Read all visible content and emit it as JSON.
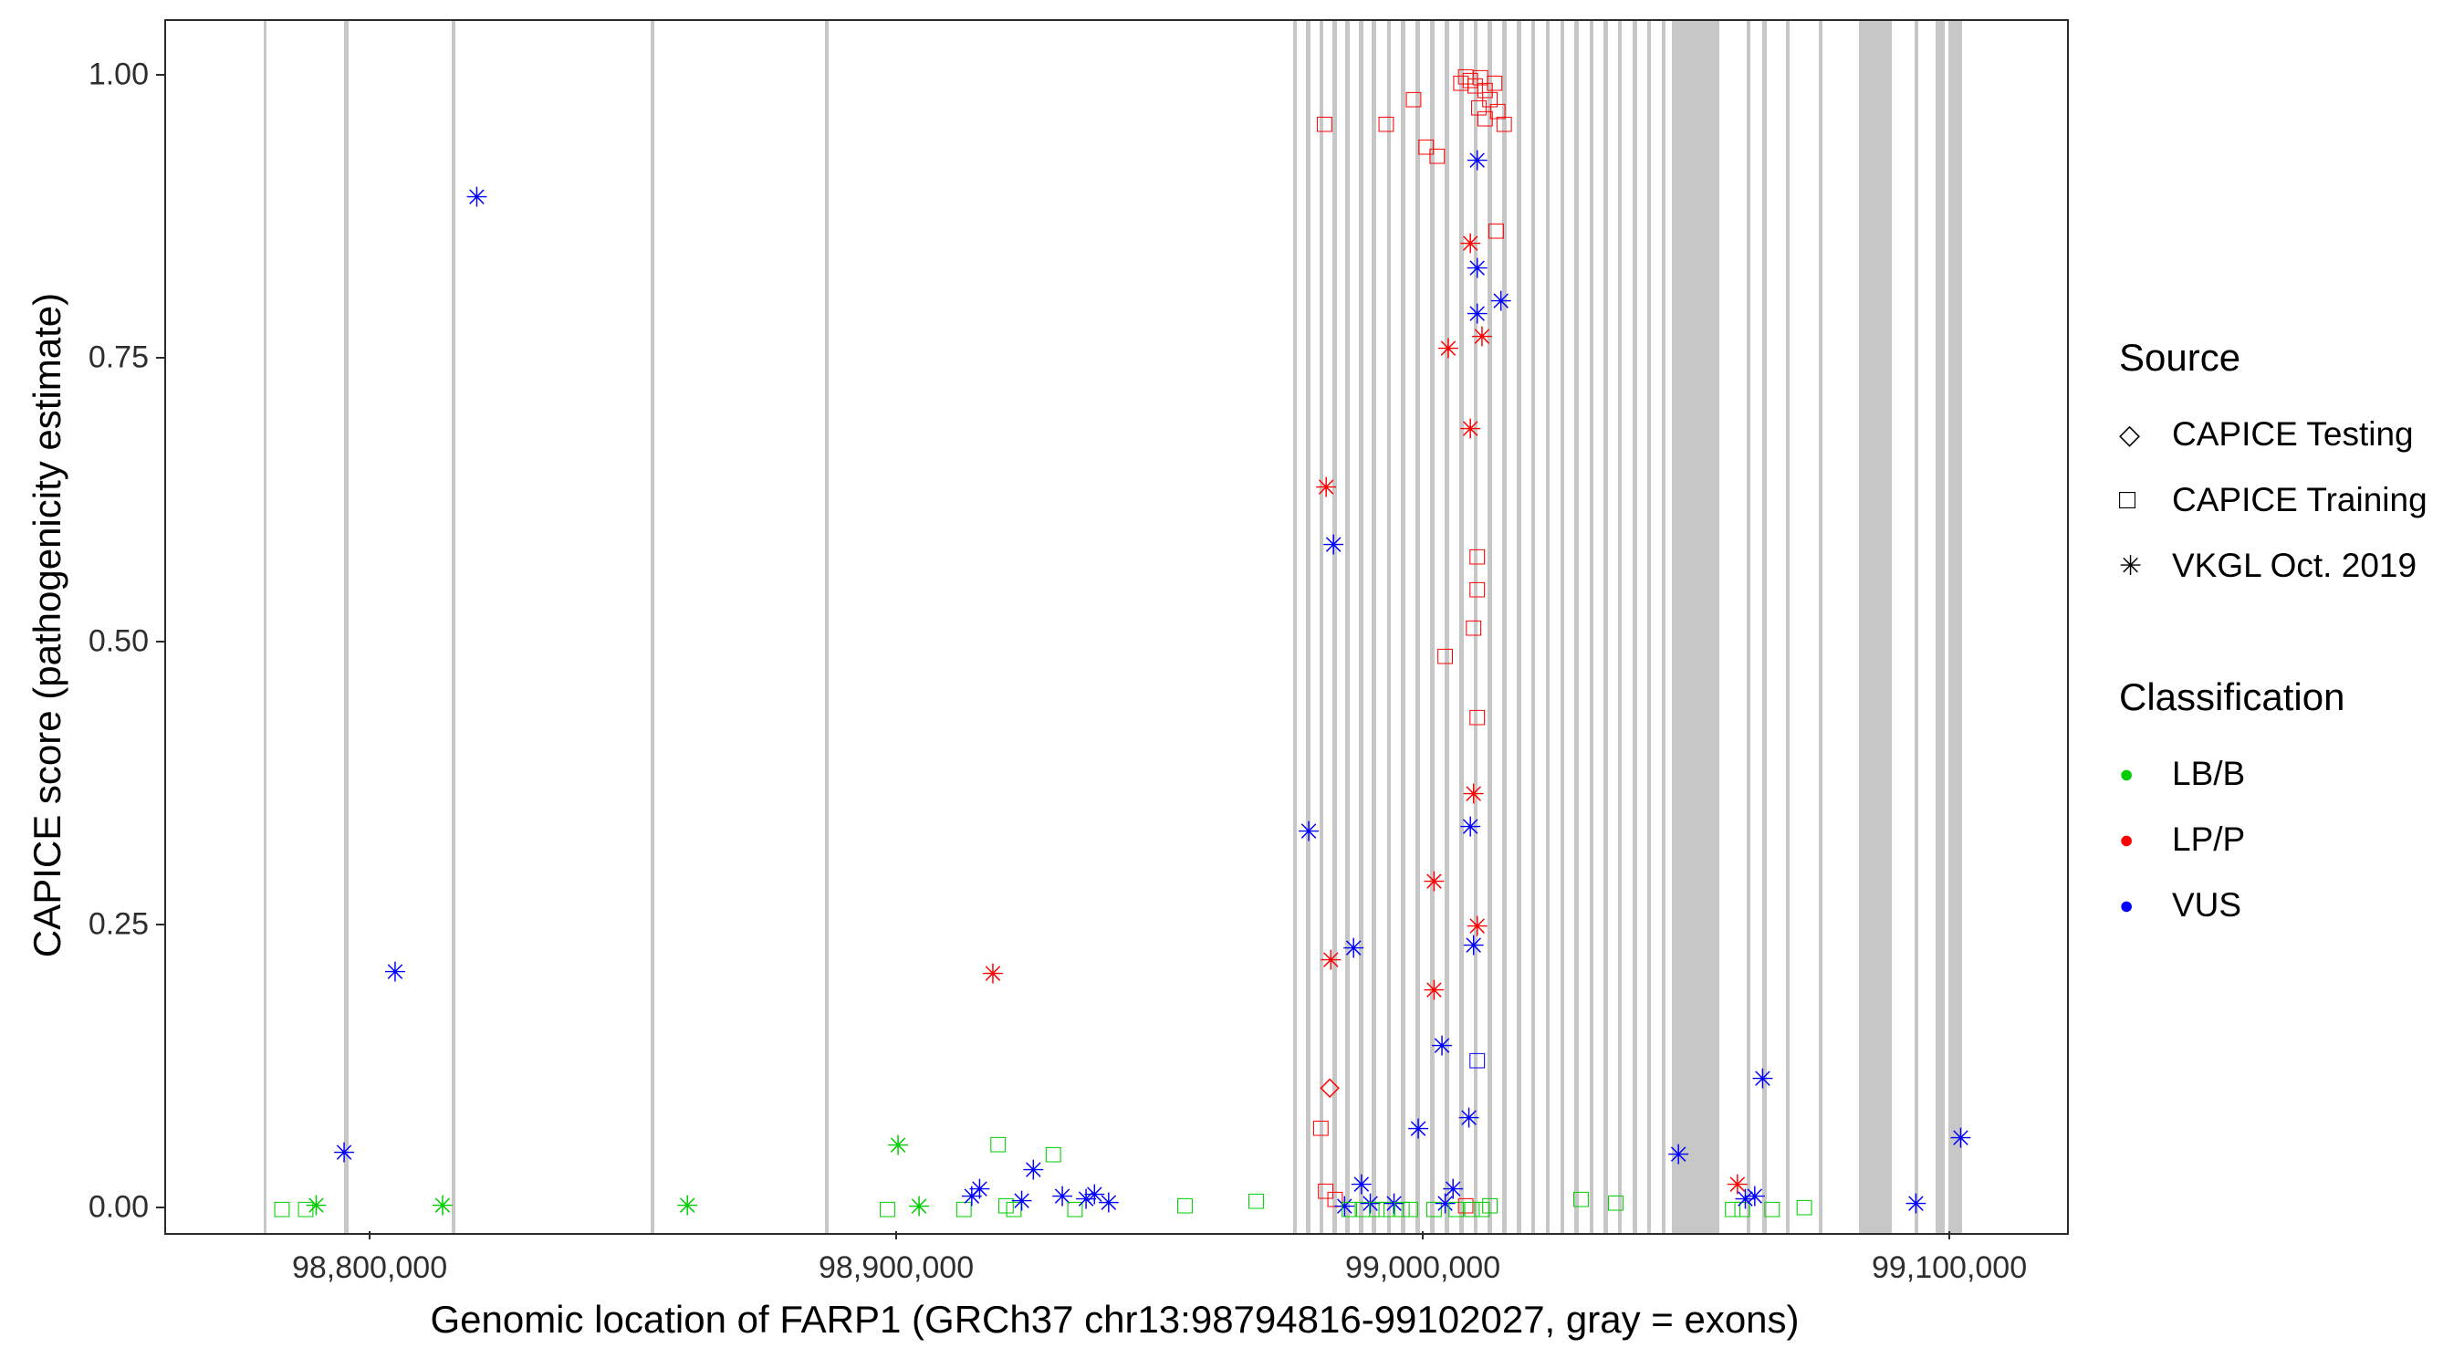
{
  "axes": {
    "x": {
      "title": "Genomic location of FARP1 (GRCh37 chr13:98794816-99102027, gray = exons)",
      "ticks": [
        {
          "value": 98800000,
          "label": "98,800,000"
        },
        {
          "value": 98900000,
          "label": "98,900,000"
        },
        {
          "value": 99000000,
          "label": "99,000,000"
        },
        {
          "value": 99100000,
          "label": "99,100,000"
        }
      ]
    },
    "y": {
      "title": "CAPICE score (pathogenicity estimate)",
      "ticks": [
        {
          "value": 0.0,
          "label": "0.00"
        },
        {
          "value": 0.25,
          "label": "0.25"
        },
        {
          "value": 0.5,
          "label": "0.50"
        },
        {
          "value": 0.75,
          "label": "0.75"
        },
        {
          "value": 1.0,
          "label": "1.00"
        }
      ]
    }
  },
  "legend": {
    "source": {
      "title": "Source",
      "items": [
        {
          "label": "CAPICE Testing",
          "code": "te",
          "symbol": "open-diamond"
        },
        {
          "label": "CAPICE Training",
          "code": "tr",
          "symbol": "open-square"
        },
        {
          "label": "VKGL Oct. 2019",
          "code": "vk",
          "symbol": "asterisk"
        }
      ]
    },
    "classification": {
      "title": "Classification",
      "items": [
        {
          "label": "LB/B",
          "code": "LB",
          "color": "#00CC00"
        },
        {
          "label": "LP/P",
          "code": "LP",
          "color": "#FF0000"
        },
        {
          "label": "VUS",
          "code": "VUS",
          "color": "#0000FF"
        }
      ]
    }
  },
  "chart_data": {
    "type": "scatter",
    "title": "",
    "xlabel": "Genomic location of FARP1 (GRCh37 chr13:98794816-99102027, gray = exons)",
    "ylabel": "CAPICE score (pathogenicity estimate)",
    "xlim": [
      98761000,
      99122000
    ],
    "ylim": [
      0,
      1
    ],
    "grid": false,
    "legend_position": "right",
    "point_schema": [
      "genomic_position",
      "capice_score",
      "source_code",
      "classification_code"
    ],
    "source_codes": {
      "te": "CAPICE Testing",
      "tr": "CAPICE Training",
      "vk": "VKGL Oct. 2019"
    },
    "classification_codes": {
      "LB": "LB/B",
      "LP": "LP/P",
      "VUS": "VUS"
    },
    "class_colors": {
      "LB": "#00CC00",
      "LP": "#FF0000",
      "VUS": "#0000FF"
    },
    "exon_color": "#c7c7c7",
    "exons": [
      [
        98779500,
        98780100
      ],
      [
        98794816,
        98795600
      ],
      [
        98815200,
        98815900
      ],
      [
        98853000,
        98853700
      ],
      [
        98886200,
        98886900
      ],
      [
        98975000,
        98975800
      ],
      [
        98977500,
        98978300
      ],
      [
        98980000,
        98980700
      ],
      [
        98982500,
        98983400
      ],
      [
        98985000,
        98985700
      ],
      [
        98987500,
        98988300
      ],
      [
        98990000,
        98990800
      ],
      [
        98992800,
        98993500
      ],
      [
        98995500,
        98996300
      ],
      [
        98998300,
        98999100
      ],
      [
        99001000,
        99001900
      ],
      [
        99003800,
        99004600
      ],
      [
        99006500,
        99007400
      ],
      [
        99009300,
        99010100
      ],
      [
        99012000,
        99012900
      ],
      [
        99014800,
        99015600
      ],
      [
        99017500,
        99018300
      ],
      [
        99020300,
        99021000
      ],
      [
        99023000,
        99023800
      ],
      [
        99025800,
        99026500
      ],
      [
        99028500,
        99029300
      ],
      [
        99031300,
        99032000
      ],
      [
        99034000,
        99034800
      ],
      [
        99036800,
        99037500
      ],
      [
        99039500,
        99040300
      ],
      [
        99042300,
        99043000
      ],
      [
        99045000,
        99045700
      ],
      [
        99047000,
        99056000
      ],
      [
        99061200,
        99061900
      ],
      [
        99064200,
        99064900
      ],
      [
        99068700,
        99069400
      ],
      [
        99074800,
        99075500
      ],
      [
        99082500,
        99088700
      ],
      [
        99093000,
        99093700
      ],
      [
        99097000,
        99098800
      ],
      [
        99099400,
        99102027
      ]
    ],
    "points": [
      [
        98783000,
        0.0,
        "tr",
        "LB"
      ],
      [
        98787500,
        0.0,
        "tr",
        "LB"
      ],
      [
        98789500,
        0.002,
        "vk",
        "LB"
      ],
      [
        98794800,
        0.048,
        "vk",
        "VUS"
      ],
      [
        98804500,
        0.208,
        "vk",
        "VUS"
      ],
      [
        98813500,
        0.002,
        "vk",
        "LB"
      ],
      [
        98820000,
        0.892,
        "vk",
        "VUS"
      ],
      [
        98860000,
        0.002,
        "vk",
        "LB"
      ],
      [
        98898000,
        0.0,
        "tr",
        "LB"
      ],
      [
        98900000,
        0.055,
        "vk",
        "LB"
      ],
      [
        98904000,
        0.001,
        "vk",
        "LB"
      ],
      [
        98912500,
        0.0,
        "tr",
        "LB"
      ],
      [
        98914000,
        0.01,
        "vk",
        "VUS"
      ],
      [
        98915500,
        0.016,
        "vk",
        "VUS"
      ],
      [
        98918000,
        0.206,
        "vk",
        "LP"
      ],
      [
        98919000,
        0.057,
        "tr",
        "LB"
      ],
      [
        98920500,
        0.003,
        "tr",
        "LB"
      ],
      [
        98922000,
        0.0,
        "tr",
        "LB"
      ],
      [
        98923500,
        0.006,
        "vk",
        "VUS"
      ],
      [
        98925700,
        0.033,
        "vk",
        "VUS"
      ],
      [
        98929500,
        0.048,
        "tr",
        "LB"
      ],
      [
        98931200,
        0.01,
        "vk",
        "VUS"
      ],
      [
        98933600,
        0.0,
        "tr",
        "LB"
      ],
      [
        98935700,
        0.007,
        "vk",
        "VUS"
      ],
      [
        98937300,
        0.011,
        "vk",
        "VUS"
      ],
      [
        98940000,
        0.004,
        "vk",
        "VUS"
      ],
      [
        98954500,
        0.003,
        "tr",
        "LB"
      ],
      [
        98968000,
        0.007,
        "tr",
        "LB"
      ],
      [
        98978000,
        0.332,
        "vk",
        "VUS"
      ],
      [
        98980300,
        0.072,
        "tr",
        "LP"
      ],
      [
        98981000,
        0.958,
        "tr",
        "LP"
      ],
      [
        98981300,
        0.636,
        "vk",
        "LP"
      ],
      [
        98981200,
        0.016,
        "tr",
        "LP"
      ],
      [
        98982000,
        0.108,
        "te",
        "LP"
      ],
      [
        98982200,
        0.218,
        "vk",
        "LP"
      ],
      [
        98982700,
        0.585,
        "vk",
        "VUS"
      ],
      [
        98983000,
        0.009,
        "tr",
        "LP"
      ],
      [
        98984800,
        0.001,
        "vk",
        "VUS"
      ],
      [
        98985700,
        0.0,
        "tr",
        "LB"
      ],
      [
        98986500,
        0.229,
        "vk",
        "VUS"
      ],
      [
        98988000,
        0.02,
        "vk",
        "VUS"
      ],
      [
        98988200,
        0.0,
        "tr",
        "LB"
      ],
      [
        98989700,
        0.003,
        "vk",
        "VUS"
      ],
      [
        98990900,
        0.0,
        "tr",
        "LB"
      ],
      [
        98992700,
        0.958,
        "tr",
        "LP"
      ],
      [
        98992700,
        0.0,
        "tr",
        "LB"
      ],
      [
        98994200,
        0.003,
        "vk",
        "VUS"
      ],
      [
        98995700,
        0.0,
        "tr",
        "LB"
      ],
      [
        98997300,
        0.0,
        "tr",
        "LB"
      ],
      [
        98997900,
        0.98,
        "tr",
        "LP"
      ],
      [
        98998800,
        0.069,
        "vk",
        "VUS"
      ],
      [
        99000300,
        0.938,
        "tr",
        "LP"
      ],
      [
        99001800,
        0.288,
        "vk",
        "LP"
      ],
      [
        99001800,
        0.192,
        "vk",
        "LP"
      ],
      [
        99001800,
        0.0,
        "tr",
        "LB"
      ],
      [
        99002400,
        0.93,
        "tr",
        "LP"
      ],
      [
        99003300,
        0.143,
        "vk",
        "VUS"
      ],
      [
        99003900,
        0.488,
        "tr",
        "LP"
      ],
      [
        99003900,
        0.003,
        "vk",
        "VUS"
      ],
      [
        99004500,
        0.758,
        "vk",
        "LP"
      ],
      [
        99005400,
        0.016,
        "vk",
        "VUS"
      ],
      [
        99006000,
        0.0,
        "tr",
        "LB"
      ],
      [
        99006900,
        0.994,
        "tr",
        "LP"
      ],
      [
        99007800,
        1.0,
        "tr",
        "LP"
      ],
      [
        99007800,
        0.003,
        "tr",
        "LP"
      ],
      [
        99008400,
        0.079,
        "vk",
        "VUS"
      ],
      [
        99008700,
        0.997,
        "tr",
        "LP"
      ],
      [
        99008700,
        0.851,
        "vk",
        "LP"
      ],
      [
        99008700,
        0.687,
        "vk",
        "LP"
      ],
      [
        99008700,
        0.336,
        "vk",
        "VUS"
      ],
      [
        99009000,
        0.0,
        "tr",
        "LB"
      ],
      [
        99009300,
        0.513,
        "tr",
        "LP"
      ],
      [
        99009300,
        0.365,
        "vk",
        "LP"
      ],
      [
        99009300,
        0.231,
        "vk",
        "VUS"
      ],
      [
        99009600,
        0.992,
        "tr",
        "LP"
      ],
      [
        99010000,
        0.924,
        "vk",
        "VUS"
      ],
      [
        99010000,
        0.829,
        "vk",
        "VUS"
      ],
      [
        99010000,
        0.789,
        "vk",
        "VUS"
      ],
      [
        99010000,
        0.576,
        "tr",
        "LP"
      ],
      [
        99010000,
        0.547,
        "tr",
        "LP"
      ],
      [
        99010000,
        0.434,
        "tr",
        "LP"
      ],
      [
        99010000,
        0.248,
        "vk",
        "LP"
      ],
      [
        99010000,
        0.131,
        "tr",
        "VUS"
      ],
      [
        99010300,
        0.973,
        "tr",
        "LP"
      ],
      [
        99010600,
        0.999,
        "tr",
        "LP"
      ],
      [
        99010900,
        0.769,
        "vk",
        "LP"
      ],
      [
        99010900,
        0.0,
        "tr",
        "LB"
      ],
      [
        99011500,
        0.988,
        "tr",
        "LP"
      ],
      [
        99011500,
        0.963,
        "tr",
        "LP"
      ],
      [
        99012400,
        0.98,
        "tr",
        "LP"
      ],
      [
        99012400,
        0.003,
        "tr",
        "LB"
      ],
      [
        99013300,
        0.994,
        "tr",
        "LP"
      ],
      [
        99013600,
        0.864,
        "tr",
        "LP"
      ],
      [
        99013900,
        0.969,
        "tr",
        "LP"
      ],
      [
        99014500,
        0.8,
        "vk",
        "VUS"
      ],
      [
        99015100,
        0.958,
        "tr",
        "LP"
      ],
      [
        99029700,
        0.009,
        "tr",
        "LB"
      ],
      [
        99036300,
        0.006,
        "tr",
        "LB"
      ],
      [
        99048200,
        0.047,
        "vk",
        "VUS"
      ],
      [
        99058500,
        0.0,
        "tr",
        "LB"
      ],
      [
        99059400,
        0.02,
        "vk",
        "LP"
      ],
      [
        99060300,
        0.0,
        "tr",
        "LB"
      ],
      [
        99060900,
        0.007,
        "vk",
        "VUS"
      ],
      [
        99062700,
        0.01,
        "vk",
        "VUS"
      ],
      [
        99064200,
        0.114,
        "vk",
        "VUS"
      ],
      [
        99066000,
        0.0,
        "tr",
        "LB"
      ],
      [
        99072100,
        0.002,
        "tr",
        "LB"
      ],
      [
        99093300,
        0.003,
        "vk",
        "VUS"
      ],
      [
        99101800,
        0.061,
        "vk",
        "VUS"
      ]
    ]
  }
}
